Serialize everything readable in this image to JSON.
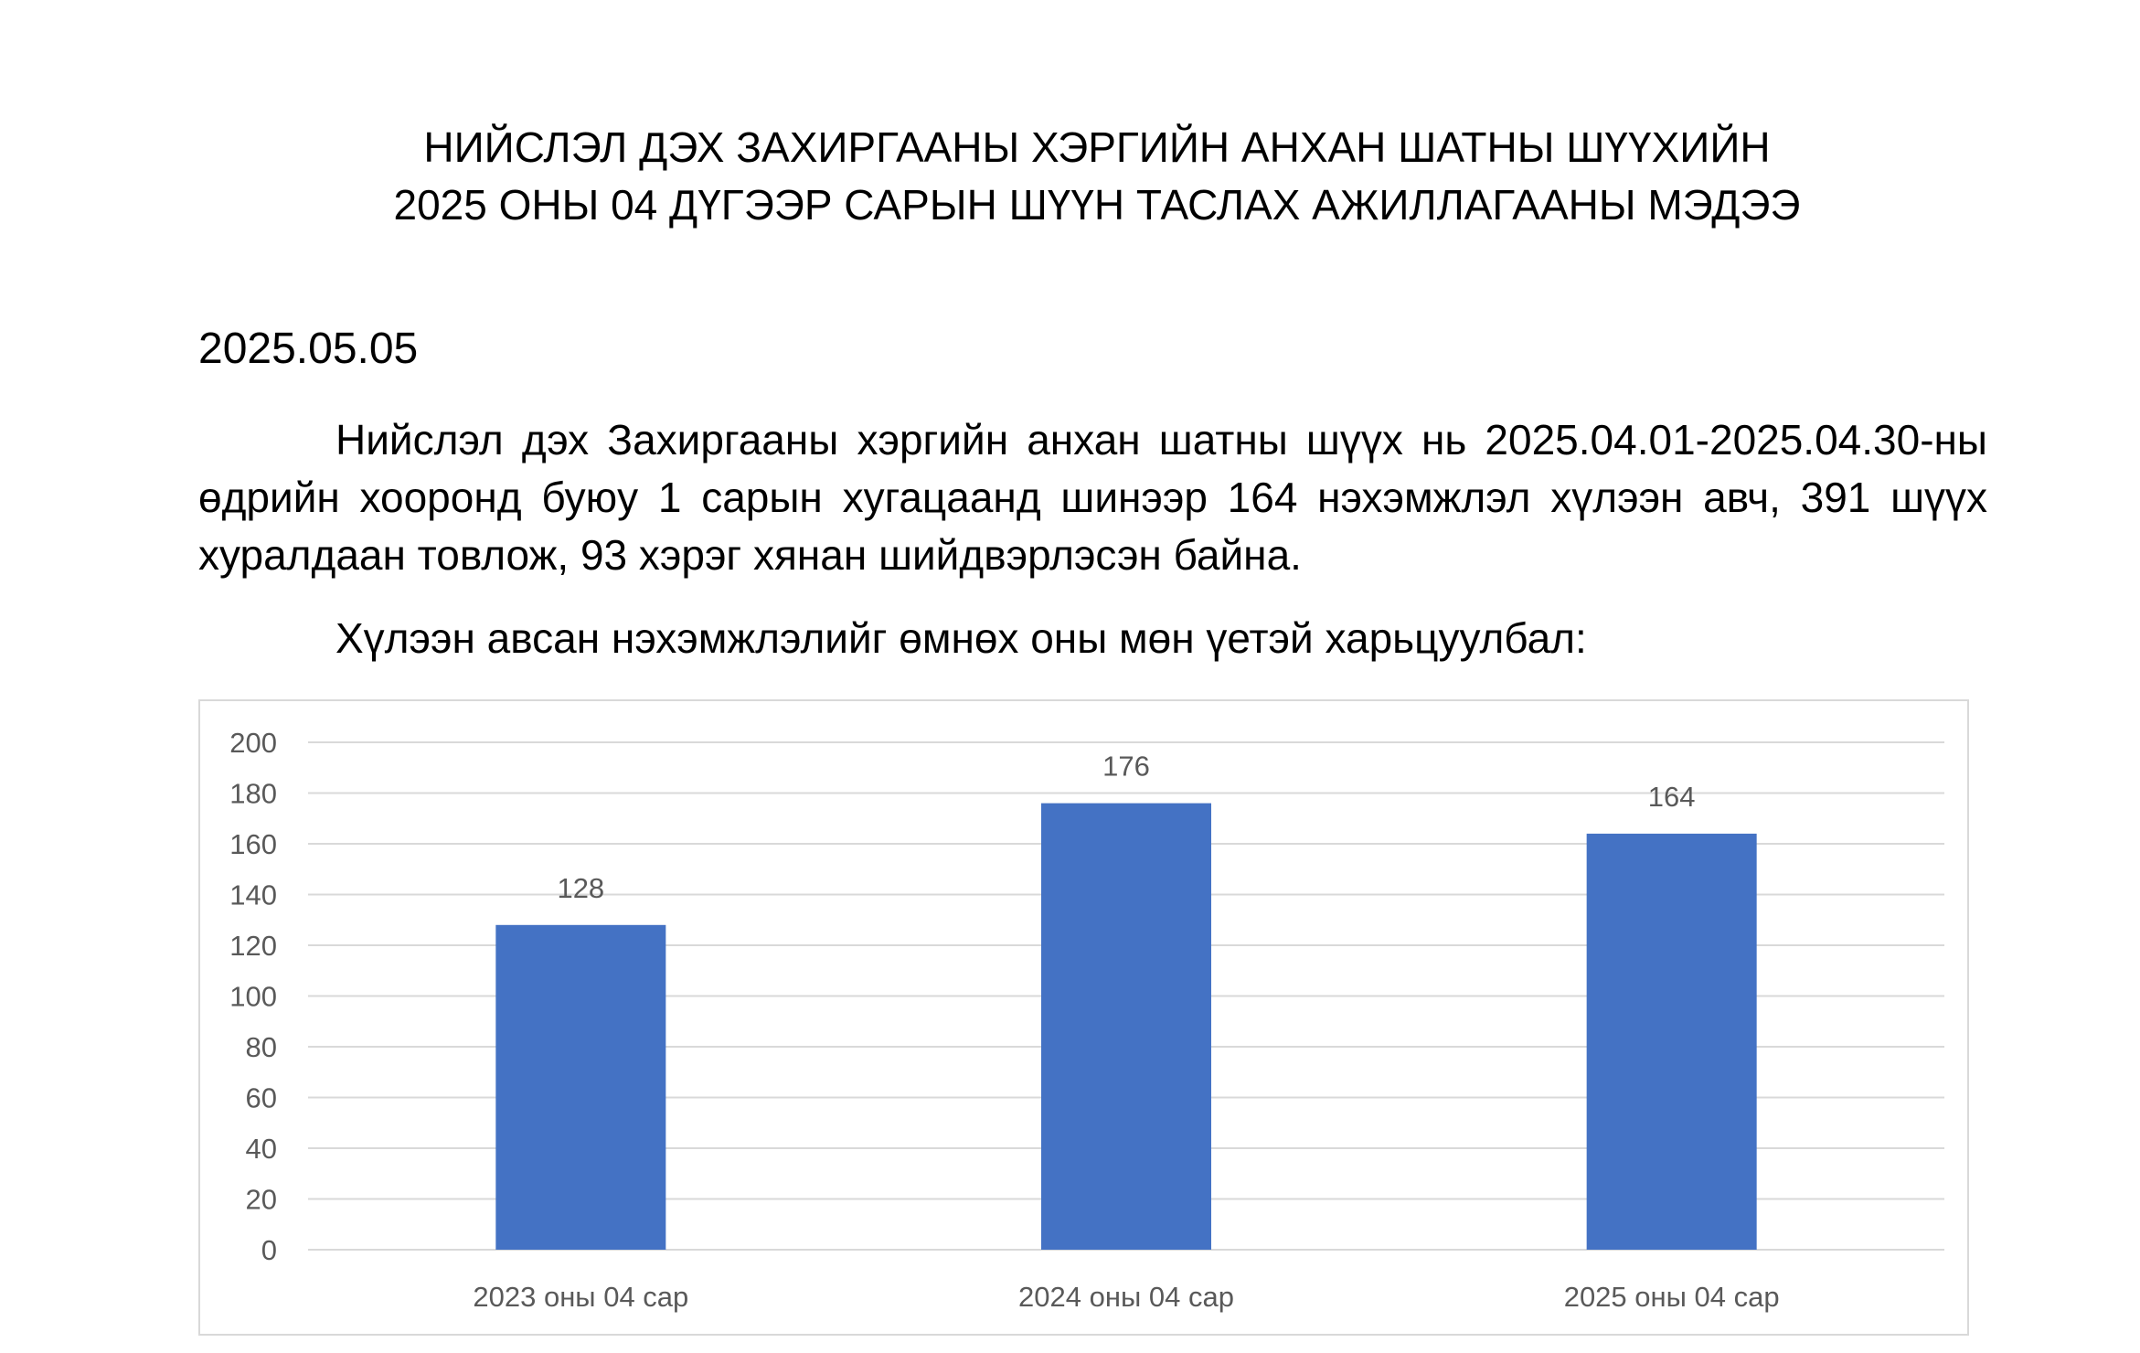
{
  "document": {
    "title_line1": "НИЙСЛЭЛ ДЭХ ЗАХИРГААНЫ ХЭРГИЙН АНХАН ШАТНЫ ШҮҮХИЙН",
    "title_line2": "2025 ОНЫ 04 ДҮГЭЭР САРЫН ШҮҮН ТАСЛАХ АЖИЛЛАГААНЫ МЭДЭЭ",
    "date": "2025.05.05",
    "paragraph": "Нийслэл дэх Захиргааны хэргийн анхан шатны шүүх нь 2025.04.01-2025.04.30-ны өдрийн хооронд буюу 1 сарын хугацаанд шинээр 164 нэхэмжлэл хүлээн авч, 391 шүүх хуралдаан товлож, 93 хэрэг хянан шийдвэрлэсэн байна.",
    "intro": "Хүлээн авсан нэхэмжлэлийг өмнөх оны мөн үетэй харьцуулбал:"
  },
  "chart_data": {
    "type": "bar",
    "categories": [
      "2023 оны 04 сар",
      "2024 оны 04 сар",
      "2025 оны 04 сар"
    ],
    "values": [
      128,
      176,
      164
    ],
    "ylim": [
      0,
      200
    ],
    "yticks": [
      0,
      20,
      40,
      60,
      80,
      100,
      120,
      140,
      160,
      180,
      200
    ],
    "grid": true,
    "data_labels": true,
    "bar_color": "#4472c4",
    "grid_color": "#d9d9d9",
    "label_color": "#595959",
    "title": "",
    "xlabel": "",
    "ylabel": ""
  }
}
